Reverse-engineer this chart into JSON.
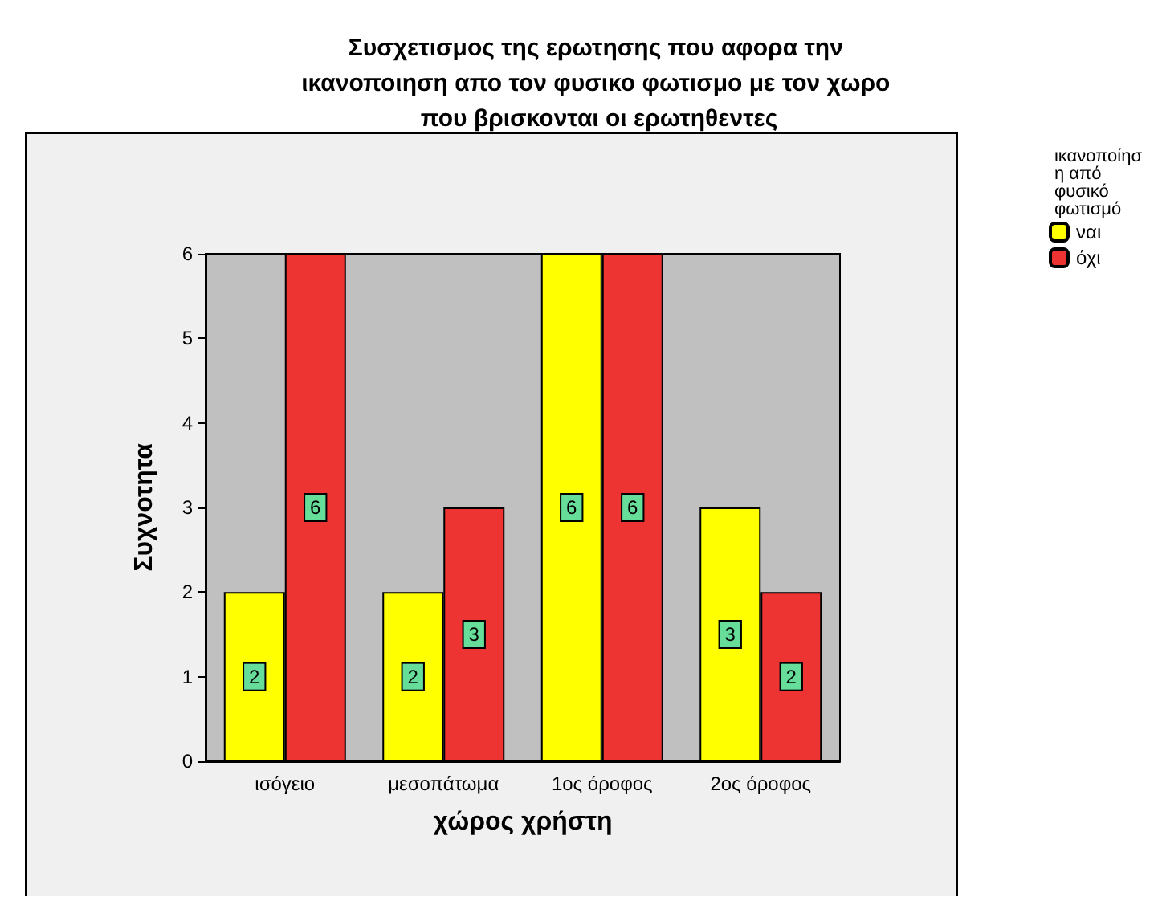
{
  "chart_data": {
    "type": "bar",
    "title": "Συσχετισμος της ερωτησης που αφορα την ικανοποιηση απο τον φυσικο φωτισμο με τον χωρο που βρισκονται οι ερωτηθεντες",
    "xlabel": "χώρος χρήστη",
    "ylabel": "Συχνοτητα",
    "legend_title": "ικανοποίηση από φυσικό φωτισμό",
    "categories": [
      "ισόγειο",
      "μεσοπάτωμα",
      "1ος όροφος",
      "2ος όροφος"
    ],
    "series": [
      {
        "name": "ναι",
        "color": "#ffff00",
        "values": [
          2,
          2,
          6,
          3
        ]
      },
      {
        "name": "όχι",
        "color": "#ee3333",
        "values": [
          6,
          3,
          6,
          2
        ]
      }
    ],
    "ylim": [
      0,
      6
    ],
    "yticks": [
      0,
      1,
      2,
      3,
      4,
      5,
      6
    ],
    "data_labels": true,
    "legend": "top right",
    "grid": false
  }
}
